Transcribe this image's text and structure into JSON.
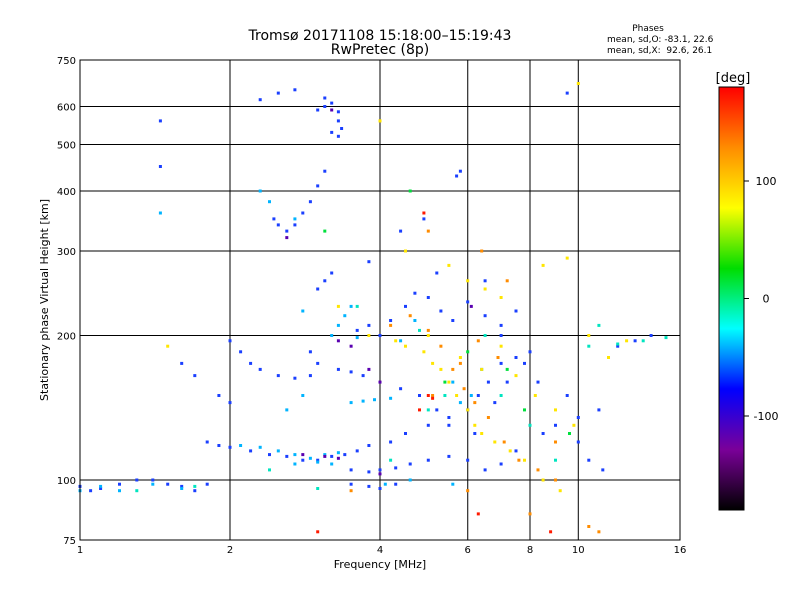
{
  "title": {
    "line1": "Tromsø 20171108 15:18:00–15:19:43",
    "line2": "RwPretec (8p)"
  },
  "stats": {
    "heading": "Phases",
    "line_o": "mean, sd,O: -83.1, 22.6",
    "line_x": "mean, sd,X:  92.6, 26.1"
  },
  "chart_data": {
    "type": "scatter",
    "xlabel": "Frequency [MHz]",
    "ylabel": "Stationary phase Virtual Height [km]",
    "x_scale": "log",
    "y_scale": "log",
    "xlim": [
      1,
      16
    ],
    "ylim": [
      75,
      750
    ],
    "x_ticks": [
      1,
      2,
      4,
      6,
      8,
      10,
      16
    ],
    "y_ticks": [
      75,
      100,
      200,
      300,
      400,
      500,
      600,
      750
    ],
    "grid": true,
    "colorbar": {
      "label": "[deg]",
      "range": [
        -180,
        180
      ],
      "ticks": [
        100,
        0,
        -100
      ],
      "colors": [
        "#ff0000",
        "#ff8c00",
        "#ffff00",
        "#00dd00",
        "#00ffff",
        "#0000ff",
        "#7a0099",
        "#000000"
      ]
    },
    "series": [
      {
        "color": "#1a3fff",
        "points": [
          [
            1.0,
            97
          ],
          [
            1.05,
            95
          ],
          [
            1.1,
            96
          ],
          [
            1.2,
            98
          ],
          [
            1.3,
            100
          ],
          [
            1.4,
            100
          ],
          [
            1.5,
            98
          ],
          [
            1.6,
            97
          ],
          [
            1.7,
            95
          ],
          [
            1.8,
            98
          ],
          [
            1.45,
            450
          ],
          [
            1.45,
            560
          ],
          [
            2.3,
            620
          ],
          [
            2.5,
            640
          ],
          [
            2.7,
            650
          ],
          [
            3.1,
            625
          ],
          [
            3.2,
            610
          ],
          [
            3.3,
            585
          ],
          [
            3.3,
            560
          ],
          [
            3.35,
            540
          ],
          [
            3.3,
            520
          ],
          [
            3.2,
            530
          ],
          [
            3.1,
            600
          ],
          [
            2.45,
            350
          ],
          [
            2.5,
            340
          ],
          [
            2.6,
            330
          ],
          [
            2.7,
            340
          ],
          [
            2.8,
            360
          ],
          [
            2.9,
            380
          ],
          [
            3.0,
            410
          ],
          [
            3.1,
            440
          ],
          [
            5.7,
            430
          ],
          [
            5.8,
            440
          ],
          [
            3.0,
            250
          ],
          [
            3.1,
            260
          ],
          [
            3.2,
            270
          ],
          [
            2.0,
            195
          ],
          [
            2.1,
            185
          ],
          [
            2.2,
            175
          ],
          [
            2.3,
            170
          ],
          [
            2.5,
            165
          ],
          [
            2.7,
            163
          ],
          [
            2.9,
            165
          ],
          [
            3.0,
            175
          ],
          [
            2.9,
            185
          ],
          [
            3.3,
            170
          ],
          [
            3.5,
            168
          ],
          [
            3.7,
            165
          ],
          [
            1.6,
            175
          ],
          [
            1.7,
            165
          ],
          [
            1.9,
            150
          ],
          [
            2.0,
            145
          ],
          [
            1.8,
            120
          ],
          [
            1.9,
            118
          ],
          [
            2.0,
            117
          ],
          [
            2.2,
            115
          ],
          [
            2.4,
            113
          ],
          [
            2.6,
            112
          ],
          [
            2.8,
            110
          ],
          [
            3.0,
            110
          ],
          [
            3.2,
            112
          ],
          [
            3.4,
            113
          ],
          [
            3.6,
            115
          ],
          [
            3.8,
            118
          ],
          [
            4.2,
            120
          ],
          [
            4.5,
            125
          ],
          [
            5.0,
            130
          ],
          [
            5.5,
            135
          ],
          [
            6.0,
            140
          ],
          [
            6.3,
            150
          ],
          [
            6.6,
            160
          ],
          [
            7.0,
            175
          ],
          [
            7.5,
            180
          ],
          [
            8.0,
            185
          ],
          [
            3.5,
            105
          ],
          [
            3.8,
            104
          ],
          [
            4.0,
            105
          ],
          [
            4.3,
            106
          ],
          [
            4.6,
            108
          ],
          [
            5.0,
            110
          ],
          [
            5.5,
            112
          ],
          [
            6.0,
            110
          ],
          [
            6.5,
            105
          ],
          [
            7.0,
            108
          ],
          [
            7.5,
            115
          ],
          [
            8.5,
            125
          ],
          [
            9.0,
            130
          ],
          [
            10.0,
            135
          ],
          [
            11.0,
            140
          ],
          [
            12.0,
            190
          ],
          [
            13.0,
            195
          ],
          [
            14.0,
            200
          ],
          [
            3.5,
            98
          ],
          [
            3.8,
            97
          ],
          [
            4.0,
            96
          ],
          [
            4.3,
            98
          ],
          [
            3.6,
            205
          ],
          [
            3.8,
            210
          ],
          [
            4.0,
            200
          ],
          [
            4.2,
            215
          ],
          [
            4.5,
            230
          ],
          [
            4.7,
            245
          ],
          [
            5.0,
            240
          ],
          [
            5.3,
            225
          ],
          [
            5.6,
            215
          ],
          [
            6.0,
            235
          ],
          [
            6.5,
            220
          ],
          [
            7.0,
            210
          ],
          [
            7.5,
            225
          ],
          [
            4.4,
            155
          ],
          [
            4.8,
            150
          ],
          [
            5.2,
            140
          ],
          [
            5.5,
            130
          ],
          [
            6.2,
            125
          ],
          [
            6.8,
            145
          ],
          [
            7.2,
            160
          ],
          [
            3.8,
            285
          ],
          [
            4.4,
            330
          ],
          [
            4.9,
            350
          ],
          [
            5.2,
            270
          ],
          [
            6.5,
            260
          ],
          [
            7.0,
            200
          ],
          [
            7.8,
            175
          ],
          [
            8.3,
            160
          ],
          [
            9.5,
            150
          ],
          [
            10.0,
            120
          ],
          [
            10.5,
            110
          ],
          [
            11.2,
            105
          ],
          [
            3.0,
            590
          ],
          [
            9.5,
            640
          ]
        ]
      },
      {
        "color": "#00b4ff",
        "points": [
          [
            1.0,
            95
          ],
          [
            1.1,
            97
          ],
          [
            1.2,
            95
          ],
          [
            1.4,
            98
          ],
          [
            1.6,
            96
          ],
          [
            2.1,
            118
          ],
          [
            2.3,
            117
          ],
          [
            2.5,
            115
          ],
          [
            2.7,
            113
          ],
          [
            2.9,
            111
          ],
          [
            3.1,
            113
          ],
          [
            3.3,
            114
          ],
          [
            2.7,
            108
          ],
          [
            3.0,
            109
          ],
          [
            3.2,
            108
          ],
          [
            3.5,
            145
          ],
          [
            3.7,
            146
          ],
          [
            3.9,
            147
          ],
          [
            4.2,
            148
          ],
          [
            3.2,
            200
          ],
          [
            3.3,
            210
          ],
          [
            3.4,
            220
          ],
          [
            3.5,
            230
          ],
          [
            2.8,
            225
          ],
          [
            3.6,
            198
          ],
          [
            4.4,
            195
          ],
          [
            4.7,
            215
          ],
          [
            5.6,
            160
          ],
          [
            5.8,
            145
          ],
          [
            6.1,
            150
          ],
          [
            6.4,
            170
          ],
          [
            2.3,
            400
          ],
          [
            2.4,
            380
          ],
          [
            2.7,
            350
          ],
          [
            5.6,
            98
          ],
          [
            2.6,
            140
          ],
          [
            2.8,
            150
          ],
          [
            1.45,
            360
          ],
          [
            4.1,
            98
          ],
          [
            4.6,
            100
          ]
        ]
      },
      {
        "color": "#00e5c0",
        "points": [
          [
            1.3,
            95
          ],
          [
            1.7,
            97
          ],
          [
            2.4,
            105
          ],
          [
            3.0,
            96
          ],
          [
            3.6,
            230
          ],
          [
            4.2,
            110
          ],
          [
            5.0,
            140
          ],
          [
            5.4,
            150
          ],
          [
            6.5,
            200
          ],
          [
            7.0,
            150
          ],
          [
            8.0,
            130
          ],
          [
            9.0,
            110
          ],
          [
            10.5,
            190
          ],
          [
            12.0,
            192
          ],
          [
            13.5,
            195
          ],
          [
            15.0,
            198
          ],
          [
            11.0,
            210
          ],
          [
            4.8,
            205
          ]
        ]
      },
      {
        "color": "#ffe600",
        "points": [
          [
            1.5,
            190
          ],
          [
            4.0,
            560
          ],
          [
            3.8,
            200
          ],
          [
            4.3,
            195
          ],
          [
            4.5,
            190
          ],
          [
            4.9,
            185
          ],
          [
            5.1,
            175
          ],
          [
            5.3,
            170
          ],
          [
            5.5,
            160
          ],
          [
            5.7,
            150
          ],
          [
            6.0,
            140
          ],
          [
            6.2,
            130
          ],
          [
            6.4,
            125
          ],
          [
            6.8,
            120
          ],
          [
            7.3,
            115
          ],
          [
            7.8,
            110
          ],
          [
            8.5,
            100
          ],
          [
            9.2,
            95
          ],
          [
            3.3,
            230
          ],
          [
            5.0,
            200
          ],
          [
            5.8,
            180
          ],
          [
            6.4,
            170
          ],
          [
            7.0,
            190
          ],
          [
            7.5,
            165
          ],
          [
            8.2,
            150
          ],
          [
            9.0,
            140
          ],
          [
            9.8,
            130
          ],
          [
            10.5,
            200
          ],
          [
            11.5,
            180
          ],
          [
            12.5,
            195
          ],
          [
            4.5,
            300
          ],
          [
            5.5,
            280
          ],
          [
            6.0,
            260
          ],
          [
            6.5,
            250
          ],
          [
            7.0,
            240
          ],
          [
            8.5,
            280
          ],
          [
            9.5,
            290
          ],
          [
            10.0,
            670
          ],
          [
            4.0,
            560
          ]
        ]
      },
      {
        "color": "#ff8c00",
        "points": [
          [
            4.2,
            210
          ],
          [
            4.6,
            220
          ],
          [
            5.0,
            205
          ],
          [
            5.3,
            190
          ],
          [
            5.6,
            170
          ],
          [
            5.9,
            155
          ],
          [
            6.2,
            145
          ],
          [
            6.6,
            135
          ],
          [
            7.1,
            120
          ],
          [
            7.6,
            110
          ],
          [
            8.3,
            105
          ],
          [
            9.0,
            100
          ],
          [
            5.1,
            150
          ],
          [
            5.8,
            175
          ],
          [
            6.3,
            195
          ],
          [
            6.9,
            180
          ],
          [
            3.5,
            95
          ],
          [
            6.0,
            95
          ],
          [
            8.0,
            85
          ],
          [
            10.5,
            80
          ],
          [
            11.0,
            78
          ],
          [
            5.0,
            330
          ],
          [
            6.4,
            300
          ],
          [
            7.2,
            260
          ],
          [
            9.0,
            120
          ]
        ]
      },
      {
        "color": "#ff1a00",
        "points": [
          [
            5.0,
            150
          ],
          [
            5.1,
            148
          ],
          [
            4.8,
            140
          ],
          [
            3.0,
            78
          ],
          [
            6.3,
            85
          ],
          [
            8.8,
            78
          ],
          [
            4.9,
            360
          ]
        ]
      },
      {
        "color": "#00e03c",
        "points": [
          [
            4.6,
            400
          ],
          [
            6.0,
            185
          ],
          [
            7.2,
            170
          ],
          [
            3.1,
            330
          ],
          [
            5.4,
            160
          ],
          [
            7.8,
            140
          ],
          [
            9.6,
            125
          ]
        ]
      },
      {
        "color": "#5a00b0",
        "points": [
          [
            3.3,
            195
          ],
          [
            3.5,
            190
          ],
          [
            3.8,
            170
          ],
          [
            4.0,
            160
          ],
          [
            2.8,
            113
          ],
          [
            3.1,
            112
          ],
          [
            3.3,
            111
          ],
          [
            4.0,
            103
          ],
          [
            3.2,
            590
          ],
          [
            2.6,
            320
          ],
          [
            6.1,
            230
          ]
        ]
      }
    ]
  }
}
